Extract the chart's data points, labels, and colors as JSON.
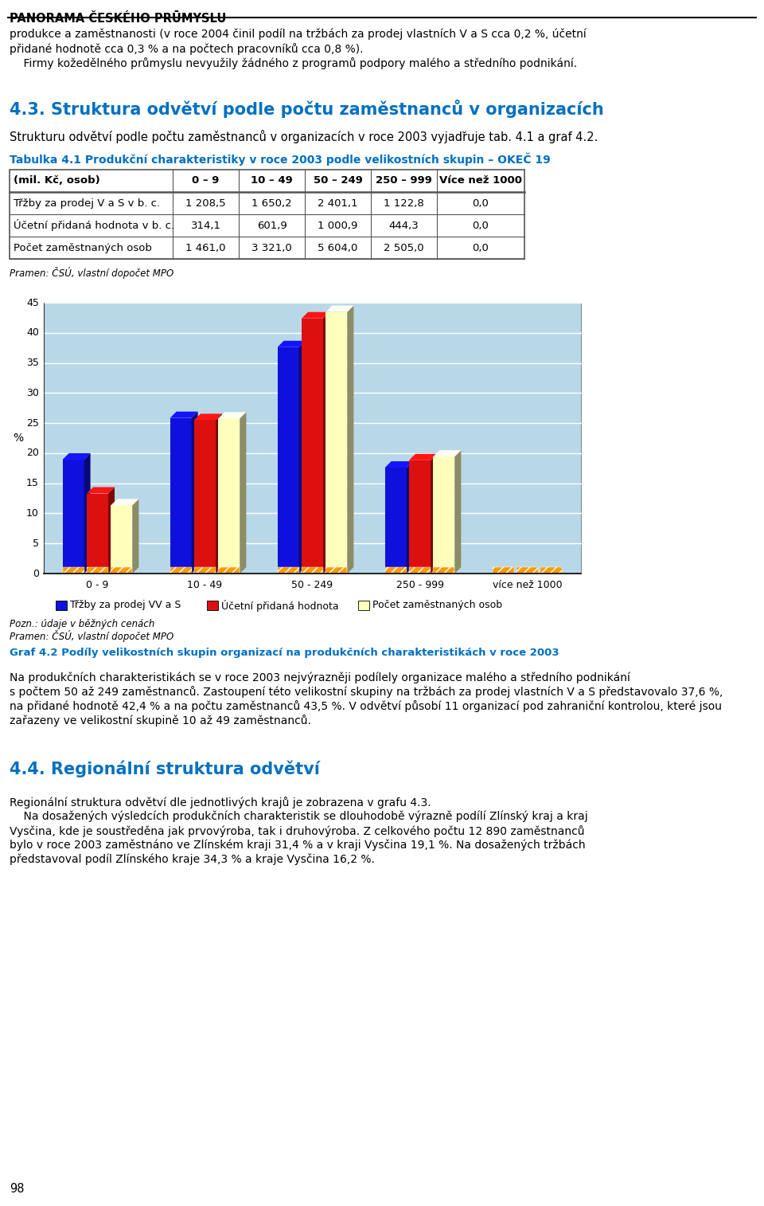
{
  "page_title": "PANORAMA ČESKÉHO PRŪMYSLU",
  "header_lines": [
    "produkce a zaměstnanosti (v roce 2004 činil podíl na tržbách za prodej vlastních V a S cca 0,2 %, účetní",
    "přidané hodnotě cca 0,3 % a na počtech pracovníků cca 0,8 %).",
    "    Firmy kožedělného průmyslu nevyužily žádného z programů podpory malého a středního podnikání."
  ],
  "section_title": "4.3. Struktura odvětví podle počtu zaměstnanců v organizacích",
  "section_color": "#0070C0",
  "intro_text": "Strukturu odvětví podle počtu zaměstnanců v organizacích v roce 2003 vyjadr̆uje tab. 4.1 a graf 4.2.",
  "table_title": "Tabulka 4.1 Produkční charakteristiky v roce 2003 podle velikostních skupin – OKEČ 19",
  "table_col_headers": [
    "(mil. Kč, osob)",
    "0 – 9",
    "10 – 49",
    "50 – 249",
    "250 – 999",
    "Více než 1000"
  ],
  "table_rows": [
    [
      "Třžby za prodej V a S v b. c.",
      "1 208,5",
      "1 650,2",
      "2 401,1",
      "1 122,8",
      "0,0"
    ],
    [
      "Účetní přidaná hodnota v b. c.",
      "314,1",
      "601,9",
      "1 000,9",
      "444,3",
      "0,0"
    ],
    [
      "Počet zaměstnaných osob",
      "1 461,0",
      "3 321,0",
      "5 604,0",
      "2 505,0",
      "0,0"
    ]
  ],
  "table_source": "Pramen: ČSÚ, vlastní dopočet MPO",
  "chart_categories": [
    "0 - 9",
    "10 - 49",
    "50 - 249",
    "250 - 999",
    "více než 1000"
  ],
  "trzby_pct": [
    18.93,
    25.85,
    37.62,
    17.59,
    0.0
  ],
  "ucetni_pct": [
    13.3,
    25.49,
    42.39,
    18.82,
    0.0
  ],
  "pocet_pct": [
    11.34,
    25.77,
    43.47,
    19.43,
    0.0
  ],
  "bar_color_blue": "#1010DD",
  "bar_color_red": "#DD1010",
  "bar_color_yellow": "#FFFFBB",
  "bar_color_orange": "#FF9900",
  "legend_labels": [
    "Třžby za prodej VV a S",
    "Účetní přidaná hodnota",
    "Počet zaměstnaných osob"
  ],
  "chart_bg": "#B8D8E8",
  "chart_ylabel": "%",
  "ylim_max": 45,
  "yticks": [
    0,
    5,
    10,
    15,
    20,
    25,
    30,
    35,
    40,
    45
  ],
  "chart_note1": "Pozn.: údaje v běžných cenách",
  "chart_note2": "Pramen: ČSÚ, vlastní dopočet MPO",
  "chart_caption": "Graf 4.2 Podíly velikostních skupin organizací na produkčních charakteristikách v roce 2003",
  "body_para1_lines": [
    "Na produkčních charakteristikách se v roce 2003 nejvýrazněji podílely organizace malého a středního podnikání",
    "s počtem 50 až 249 zaměstnanců. Zastoupení této velikostní skupiny na tržbách za prodej vlastních V a S představovalo 37,6 %,",
    "na přidané hodnotě 42,4 % a na počtu zaměstnanců 43,5 %. V odvětví působí 11 organizací pod zahraniční kontrolou, které jsou",
    "zařazeny ve velikostní skupině 10 až 49 zaměstnanců."
  ],
  "section_title_2": "4.4. Regionální struktura odvětví",
  "body_para3_lines": [
    "Regionální struktura odvětví dle jednotlivých krajů je zobrazena v grafu 4.3.",
    "    Na dosažených výsledcích produkčních charakteristik se dlouhodobě výrazně podílí Zlínský kraj a kraj",
    "Vysčina, kde je soustředěna jak prvovýroba, tak i druhovýroba. Z celkového počtu 12 890 zaměstnanců",
    "bylo v roce 2003 zaměstnáno ve Zlínském kraji 31,4 % a v kraji Vysčina 19,1 %. Na dosažených tržbách",
    "představoval podíl Zlínského kraje 34,3 % a kraje Vysčina 16,2 %."
  ],
  "page_number": "98"
}
